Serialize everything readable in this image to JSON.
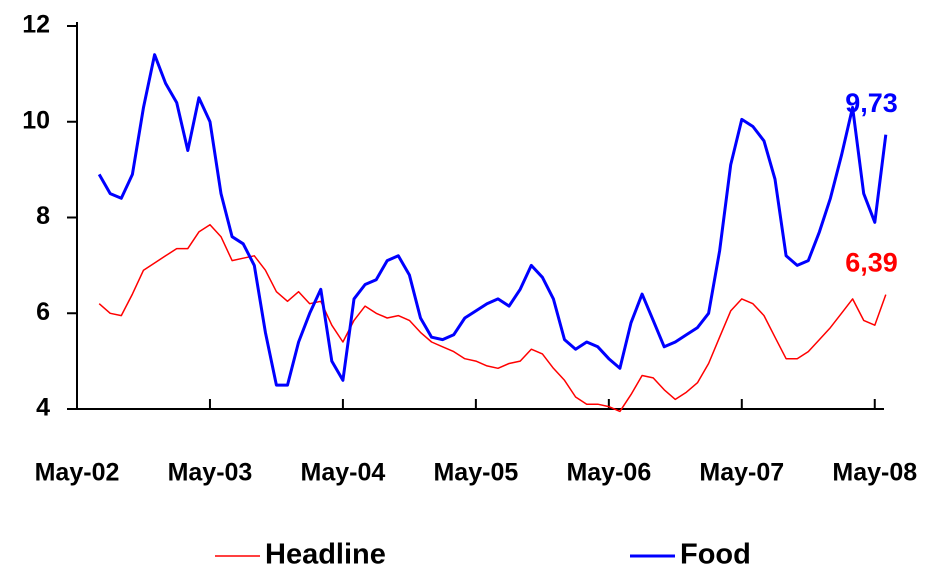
{
  "chart_data": {
    "type": "line",
    "categories": [
      "May-02",
      null,
      null,
      null,
      null,
      null,
      null,
      null,
      null,
      null,
      null,
      null,
      "May-03",
      null,
      null,
      null,
      null,
      null,
      null,
      null,
      null,
      null,
      null,
      null,
      "May-04",
      null,
      null,
      null,
      null,
      null,
      null,
      null,
      null,
      null,
      null,
      null,
      "May-05",
      null,
      null,
      null,
      null,
      null,
      null,
      null,
      null,
      null,
      null,
      null,
      "May-06",
      null,
      null,
      null,
      null,
      null,
      null,
      null,
      null,
      null,
      null,
      null,
      "May-07",
      null,
      null,
      null,
      null,
      null,
      null,
      null,
      null,
      null,
      null,
      null,
      "May-08",
      null
    ],
    "series": [
      {
        "name": "Headline",
        "color": "#ff0000",
        "values": [
          null,
          null,
          6.2,
          6.0,
          5.95,
          6.4,
          6.9,
          7.05,
          7.2,
          7.35,
          7.35,
          7.7,
          7.85,
          7.6,
          7.1,
          7.15,
          7.2,
          6.9,
          6.45,
          6.25,
          6.45,
          6.2,
          6.25,
          5.75,
          5.4,
          5.85,
          6.15,
          6.0,
          5.9,
          5.95,
          5.85,
          5.6,
          5.4,
          5.3,
          5.2,
          5.05,
          5.0,
          4.9,
          4.85,
          4.95,
          5.0,
          5.25,
          5.15,
          4.85,
          4.6,
          4.25,
          4.1,
          4.1,
          4.05,
          3.95,
          4.3,
          4.7,
          4.65,
          4.4,
          4.2,
          4.35,
          4.55,
          4.95,
          5.5,
          6.05,
          6.3,
          6.2,
          5.95,
          5.5,
          5.05,
          5.05,
          5.2,
          5.45,
          5.7,
          6.0,
          6.3,
          5.85,
          5.75,
          6.39
        ],
        "value_labels": [
          null,
          null,
          null,
          null,
          null,
          null,
          null,
          null,
          null,
          null,
          null,
          null,
          null,
          null,
          null,
          null,
          null,
          null,
          null,
          null,
          null,
          null,
          null,
          null,
          null,
          null,
          null,
          null,
          null,
          null,
          null,
          null,
          null,
          null,
          null,
          null,
          null,
          null,
          null,
          null,
          null,
          null,
          null,
          null,
          null,
          null,
          null,
          null,
          null,
          null,
          null,
          null,
          null,
          null,
          null,
          null,
          null,
          null,
          null,
          null,
          null,
          null,
          null,
          null,
          null,
          null,
          null,
          null,
          null,
          null,
          null,
          null,
          null,
          "6,39"
        ]
      },
      {
        "name": "Food",
        "color": "#0000ff",
        "values": [
          null,
          null,
          8.9,
          8.5,
          8.4,
          8.9,
          10.3,
          11.4,
          10.8,
          10.4,
          9.4,
          10.5,
          10.0,
          8.5,
          7.6,
          7.45,
          7.0,
          5.6,
          4.5,
          4.5,
          5.4,
          6.0,
          6.5,
          5.0,
          4.6,
          6.3,
          6.6,
          6.7,
          7.1,
          7.2,
          6.8,
          5.9,
          5.5,
          5.45,
          5.55,
          5.9,
          6.05,
          6.2,
          6.3,
          6.15,
          6.5,
          7.0,
          6.75,
          6.3,
          5.45,
          5.25,
          5.4,
          5.3,
          5.05,
          4.85,
          5.8,
          6.4,
          5.85,
          5.3,
          5.4,
          5.55,
          5.7,
          6.0,
          7.3,
          9.1,
          10.05,
          9.9,
          9.6,
          8.8,
          7.2,
          7.0,
          7.1,
          7.7,
          8.4,
          9.3,
          10.3,
          8.5,
          7.9,
          9.73
        ],
        "value_labels": [
          null,
          null,
          null,
          null,
          null,
          null,
          null,
          null,
          null,
          null,
          null,
          null,
          null,
          null,
          null,
          null,
          null,
          null,
          null,
          null,
          null,
          null,
          null,
          null,
          null,
          null,
          null,
          null,
          null,
          null,
          null,
          null,
          null,
          null,
          null,
          null,
          null,
          null,
          null,
          null,
          null,
          null,
          null,
          null,
          null,
          null,
          null,
          null,
          null,
          null,
          null,
          null,
          null,
          null,
          null,
          null,
          null,
          null,
          null,
          null,
          null,
          null,
          null,
          null,
          null,
          null,
          null,
          null,
          null,
          null,
          null,
          null,
          null,
          "9,73"
        ]
      }
    ],
    "ylim": [
      4,
      12
    ],
    "yticks": [
      4,
      6,
      8,
      10,
      12
    ],
    "legend": "bottom"
  }
}
